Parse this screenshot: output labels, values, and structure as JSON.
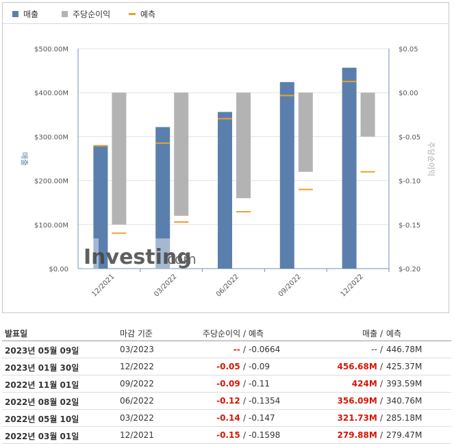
{
  "legend": [
    {
      "label": "매출",
      "color": "#5b7fad"
    },
    {
      "label": "주당순이익",
      "color": "#b3b3b3"
    },
    {
      "label": "예측",
      "color": "#e8a22c"
    }
  ],
  "chart_data": {
    "type": "bar",
    "categories": [
      "12/2021",
      "03/2022",
      "06/2022",
      "09/2022",
      "12/2022"
    ],
    "left_axis": {
      "label": "매출",
      "ticks": [
        "$0.00",
        "$100.00M",
        "$200.00M",
        "$300.00M",
        "$400.00M",
        "$500.00M"
      ],
      "ylim": [
        0,
        500
      ]
    },
    "right_axis": {
      "label": "주당순이익",
      "ticks": [
        "$-0.20",
        "$-0.15",
        "$-0.10",
        "$-0.05",
        "$0.00",
        "$0.05"
      ],
      "ylim": [
        -0.2,
        0.05
      ]
    },
    "revenue": [
      279.88,
      321.73,
      356.09,
      424,
      456.68
    ],
    "revenue_forecast": [
      279.47,
      285.18,
      340.76,
      393.59,
      425.37
    ],
    "eps": [
      -0.15,
      -0.14,
      -0.12,
      -0.09,
      -0.05
    ],
    "eps_forecast": [
      -0.1598,
      -0.147,
      -0.1354,
      -0.11,
      -0.09
    ],
    "colors": {
      "revenue": "#5b7fad",
      "eps": "#b3b3b3",
      "forecast": "#e8a22c"
    },
    "watermark": "Investing.com"
  },
  "table": {
    "headers": {
      "date": "발표일",
      "period": "마감 기준",
      "eps": "주당순이익",
      "slash": "/",
      "eps_forecast": "예측",
      "revenue": "매출",
      "revenue_forecast": "예측"
    },
    "rows": [
      {
        "date": "2023년 05월 09일",
        "period": "03/2023",
        "eps": "--",
        "eps_forecast": "-0.0664",
        "revenue": "--",
        "revenue_forecast": "446.78M"
      },
      {
        "date": "2023년 01월 30일",
        "period": "12/2022",
        "eps": "-0.05",
        "eps_forecast": "-0.09",
        "revenue": "456.68M",
        "revenue_forecast": "425.37M"
      },
      {
        "date": "2022년 11월 01일",
        "period": "09/2022",
        "eps": "-0.09",
        "eps_forecast": "-0.11",
        "revenue": "424M",
        "revenue_forecast": "393.59M"
      },
      {
        "date": "2022년 08월 02일",
        "period": "06/2022",
        "eps": "-0.12",
        "eps_forecast": "-0.1354",
        "revenue": "356.09M",
        "revenue_forecast": "340.76M"
      },
      {
        "date": "2022년 05월 10일",
        "period": "03/2022",
        "eps": "-0.14",
        "eps_forecast": "-0.147",
        "revenue": "321.73M",
        "revenue_forecast": "285.18M"
      },
      {
        "date": "2022년 03월 01일",
        "period": "12/2021",
        "eps": "-0.15",
        "eps_forecast": "-0.1598",
        "revenue": "279.88M",
        "revenue_forecast": "279.47M"
      }
    ]
  }
}
